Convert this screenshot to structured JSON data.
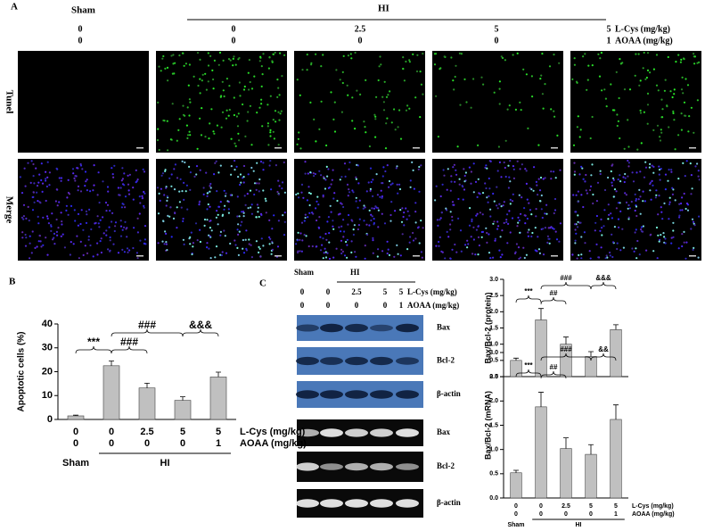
{
  "panel_labels": [
    "A",
    "B",
    "C"
  ],
  "panel_a": {
    "sham": "Sham",
    "hi": "HI",
    "l_cys": [
      "0",
      "0",
      "2.5",
      "5",
      "5"
    ],
    "l_cys_unit": "L-Cys (mg/kg)",
    "aoaa": [
      "0",
      "0",
      "0",
      "0",
      "1"
    ],
    "aoaa_unit": "AOAA (mg/kg)",
    "rows": [
      "Tunel",
      "Merge"
    ]
  },
  "blot": {
    "sham": "Sham",
    "hi": "HI",
    "l_cys": [
      "0",
      "0",
      "2.5",
      "5",
      "5"
    ],
    "l_cys_unit": "L-Cys (mg/kg)",
    "aoaa": [
      "0",
      "0",
      "0",
      "0",
      "1"
    ],
    "aoaa_unit": "AOAA (mg/kg)",
    "strips": [
      "Bax",
      "Bcl-2",
      "β-actin",
      "Bax",
      "Bcl-2",
      "β-actin"
    ]
  },
  "chart_data": [
    {
      "type": "bar",
      "ylabel": "Apoptotic cells (%)",
      "color": "#c0c0c0",
      "categories": [
        "0",
        "0",
        "2.5",
        "5",
        "5"
      ],
      "categories_aoaa": [
        "0",
        "0",
        "0",
        "0",
        "1"
      ],
      "category_row_names": [
        "L-Cys (mg/kg)",
        "AOAA (mg/kg)"
      ],
      "groups": [
        "Sham",
        "HI"
      ],
      "values": [
        1.5,
        22.5,
        13.2,
        8,
        17.8
      ],
      "errors": [
        0.3,
        2,
        2,
        1.5,
        2
      ],
      "annotations": [
        "***",
        "###",
        "###",
        "&&&"
      ],
      "ylim": [
        0,
        40
      ],
      "yticks": [
        0,
        10,
        20,
        30,
        40
      ]
    },
    {
      "type": "bar",
      "ylabel": "Bax/Bcl-2 (protein)",
      "color": "#c0c0c0",
      "values": [
        0.5,
        1.75,
        1.0,
        0.62,
        1.45
      ],
      "errors": [
        0.07,
        0.35,
        0.22,
        0.15,
        0.15
      ],
      "annotations": [
        "***",
        "##",
        "###",
        "&&&"
      ],
      "ylim": [
        0,
        3
      ],
      "yticks": [
        {
          "value": 0,
          "label": "0.0"
        },
        {
          "value": 0.5,
          "label": "0.5"
        },
        {
          "value": 1,
          "label": "1.0"
        },
        {
          "value": 1.5,
          "label": "1.5"
        },
        {
          "value": 2,
          "label": "2.0"
        },
        {
          "value": 2.5,
          "label": "2.5"
        },
        {
          "value": 3,
          "label": "3.0"
        }
      ]
    },
    {
      "type": "bar",
      "ylabel": "Bax/Bcl-2 (mRNA)",
      "color": "#c0c0c0",
      "categories": [
        "0",
        "0",
        "2.5",
        "5",
        "5"
      ],
      "categories_aoaa": [
        "0",
        "0",
        "0",
        "0",
        "1"
      ],
      "category_row_names": [
        "L-Cys (mg/kg)",
        "AOAA (mg/kg)"
      ],
      "groups": [
        "Sham",
        "HI"
      ],
      "values": [
        0.52,
        1.88,
        1.02,
        0.9,
        1.62
      ],
      "errors": [
        0.05,
        0.3,
        0.22,
        0.2,
        0.3
      ],
      "annotations": [
        "***",
        "##",
        "###",
        "&&"
      ],
      "ylim": [
        0,
        3
      ],
      "yticks": [
        {
          "value": 0,
          "label": "0.0"
        },
        {
          "value": 0.5,
          "label": "0.5"
        },
        {
          "value": 1,
          "label": "1.0"
        },
        {
          "value": 1.5,
          "label": "1.5"
        },
        {
          "value": 2,
          "label": "2.0"
        },
        {
          "value": 2.5,
          "label": "2.5"
        },
        {
          "value": 3,
          "label": "3.0"
        }
      ]
    }
  ]
}
